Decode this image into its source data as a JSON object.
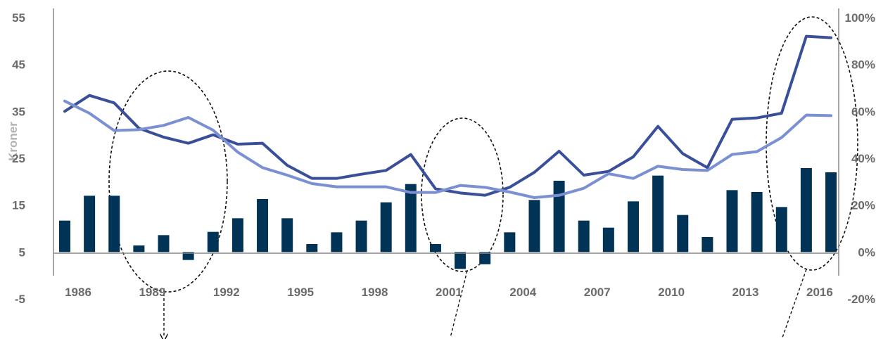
{
  "chart_data": {
    "type": "bar",
    "ylabel": "Kroner",
    "ylim": [
      -5,
      55
    ],
    "y_ticks": [
      "55",
      "45",
      "35",
      "25",
      "15",
      "5",
      "-5"
    ],
    "y2lim": [
      -20,
      100
    ],
    "y2_ticks": [
      "100%",
      "80%",
      "60%",
      "40%",
      "20%",
      "0%",
      "-20%"
    ],
    "x_tick_labels": [
      "1986",
      "1989",
      "1992",
      "1995",
      "1998",
      "2001",
      "2004",
      "2007",
      "2010",
      "2013",
      "2016"
    ],
    "categories": [
      1986,
      1987,
      1988,
      1989,
      1990,
      1991,
      1992,
      1993,
      1994,
      1995,
      1996,
      1997,
      1998,
      1999,
      2000,
      2001,
      2002,
      2003,
      2004,
      2005,
      2006,
      2007,
      2008,
      2009,
      2010,
      2011,
      2012,
      2013,
      2014,
      2015,
      2016,
      2017
    ],
    "colors": {
      "bars": "#003355",
      "dark_line": "#3a4f9a",
      "light_line": "#7b90d2",
      "axis": "#888888"
    },
    "series": [
      {
        "kind": "bar",
        "axis": "left",
        "values": [
          11.7,
          17,
          17,
          6.4,
          8.6,
          3.3,
          9.3,
          12.2,
          16.3,
          12.2,
          6.7,
          9.2,
          11.7,
          15.6,
          19.5,
          6.7,
          1.4,
          2.4,
          9.2,
          16.1,
          20.2,
          11.7,
          10.2,
          15.8,
          21.3,
          12.9,
          8.2,
          18.2,
          17.8,
          14.6,
          22.9,
          22.0
        ]
      },
      {
        "kind": "line",
        "axis": "left",
        "style": "dark",
        "values": [
          35,
          38.4,
          36.8,
          31.4,
          29.5,
          28.2,
          30,
          28,
          28.2,
          23.5,
          20.7,
          20.7,
          21.6,
          22.4,
          25.8,
          18.5,
          17.6,
          17.1,
          18.8,
          22,
          26.5,
          21.4,
          22.2,
          25.3,
          31.8,
          26,
          23,
          33.3,
          33.6,
          34.6,
          51,
          50.7
        ]
      },
      {
        "kind": "line",
        "axis": "left",
        "style": "light",
        "values": [
          37.2,
          34.6,
          30.9,
          31.1,
          32,
          33.7,
          31,
          26.3,
          23,
          21.4,
          19.6,
          18.9,
          18.9,
          18.9,
          17.7,
          17.7,
          19.2,
          18.8,
          17.8,
          16.6,
          17.1,
          18.6,
          21.7,
          20.7,
          23.3,
          22.6,
          22.4,
          25.8,
          26.4,
          29.4,
          34.2,
          34.1
        ]
      }
    ],
    "annotations": [
      {
        "type": "dashed-ellipse",
        "around": "1989-1992"
      },
      {
        "type": "dashed-ellipse",
        "around": "2001-2004"
      },
      {
        "type": "dashed-ellipse",
        "around": "2016-2017"
      }
    ],
    "grid": false,
    "legend": "none"
  }
}
